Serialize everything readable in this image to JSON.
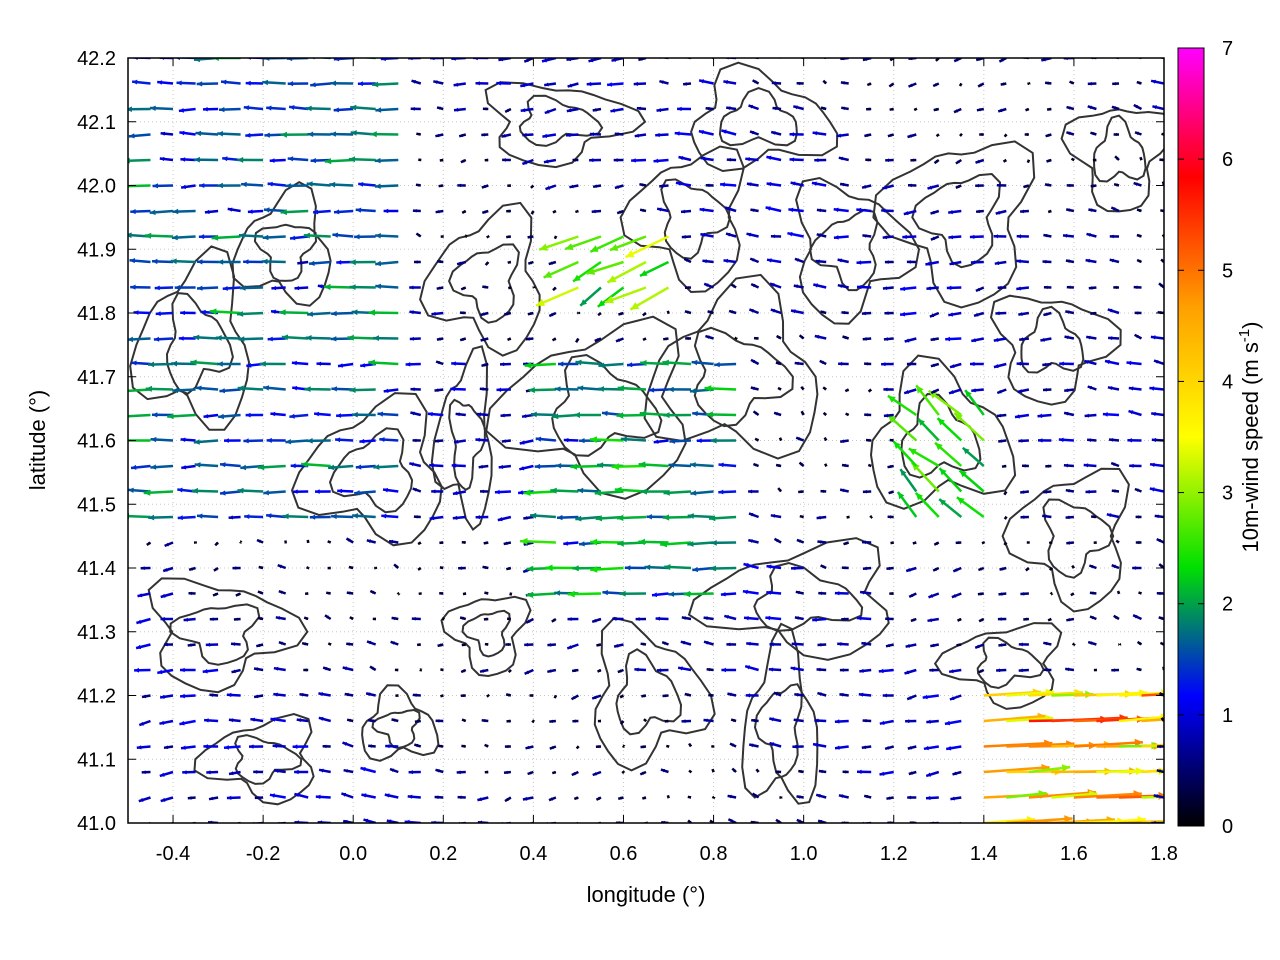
{
  "chart_data": {
    "type": "vector-field",
    "xlabel": "longitude (°)",
    "ylabel": "latitude (°)",
    "colorbar_label": "10m-wind speed (m s",
    "colorbar_unit_exp": "-1",
    "colorbar_label_close": ")",
    "xlim": [
      -0.5,
      1.8
    ],
    "ylim": [
      41.0,
      42.2
    ],
    "x_ticks": [
      "-0.4",
      "-0.2",
      "0.0",
      "0.2",
      "0.4",
      "0.6",
      "0.8",
      "1.0",
      "1.2",
      "1.4",
      "1.6",
      "1.8"
    ],
    "x_tick_values": [
      -0.4,
      -0.2,
      0.0,
      0.2,
      0.4,
      0.6,
      0.8,
      1.0,
      1.2,
      1.4,
      1.6,
      1.8
    ],
    "y_ticks": [
      "41.0",
      "41.1",
      "41.2",
      "41.3",
      "41.4",
      "41.5",
      "41.6",
      "41.7",
      "41.8",
      "41.9",
      "42.0",
      "42.1",
      "42.2"
    ],
    "y_tick_values": [
      41.0,
      41.1,
      41.2,
      41.3,
      41.4,
      41.5,
      41.6,
      41.7,
      41.8,
      41.9,
      42.0,
      42.1,
      42.2
    ],
    "colorbar_ticks": [
      "0",
      "1",
      "2",
      "3",
      "4",
      "5",
      "6",
      "7"
    ],
    "colorbar_range": [
      0,
      7
    ],
    "colormap": [
      "#000000",
      "#0000ff",
      "#00e000",
      "#ffff00",
      "#ffa000",
      "#ff0000",
      "#ff00ff"
    ],
    "grid": true,
    "contour_color": "#333333",
    "vector_grid": {
      "lon_start": -0.5,
      "lon_step": 0.05,
      "lat_start": 41.0,
      "lat_step": 0.04
    },
    "wind_regions": [
      {
        "lon": [
          -0.5,
          0.1
        ],
        "lat": [
          41.45,
          42.2
        ],
        "u": -1.5,
        "v": 0.0,
        "note": "westward flow NW"
      },
      {
        "lon": [
          0.4,
          0.9
        ],
        "lat": [
          41.35,
          41.75
        ],
        "u": -1.8,
        "v": 0.0,
        "note": "strong westward central"
      },
      {
        "lon": [
          0.1,
          0.35
        ],
        "lat": [
          41.1,
          41.45
        ],
        "u": -0.3,
        "v": 0.0,
        "note": "calm SW"
      },
      {
        "lon": [
          1.4,
          1.8
        ],
        "lat": [
          41.0,
          41.2
        ],
        "u": 4.2,
        "v": 0.2,
        "note": "strong eastward SE"
      },
      {
        "lon": [
          0.45,
          0.75
        ],
        "lat": [
          41.8,
          41.95
        ],
        "u": -2.5,
        "v": -1.2,
        "note": "downslope gust N"
      },
      {
        "lon": [
          1.25,
          1.45
        ],
        "lat": [
          41.45,
          41.65
        ],
        "u": -1.6,
        "v": 1.6,
        "note": "SE to NW inflow"
      }
    ]
  }
}
